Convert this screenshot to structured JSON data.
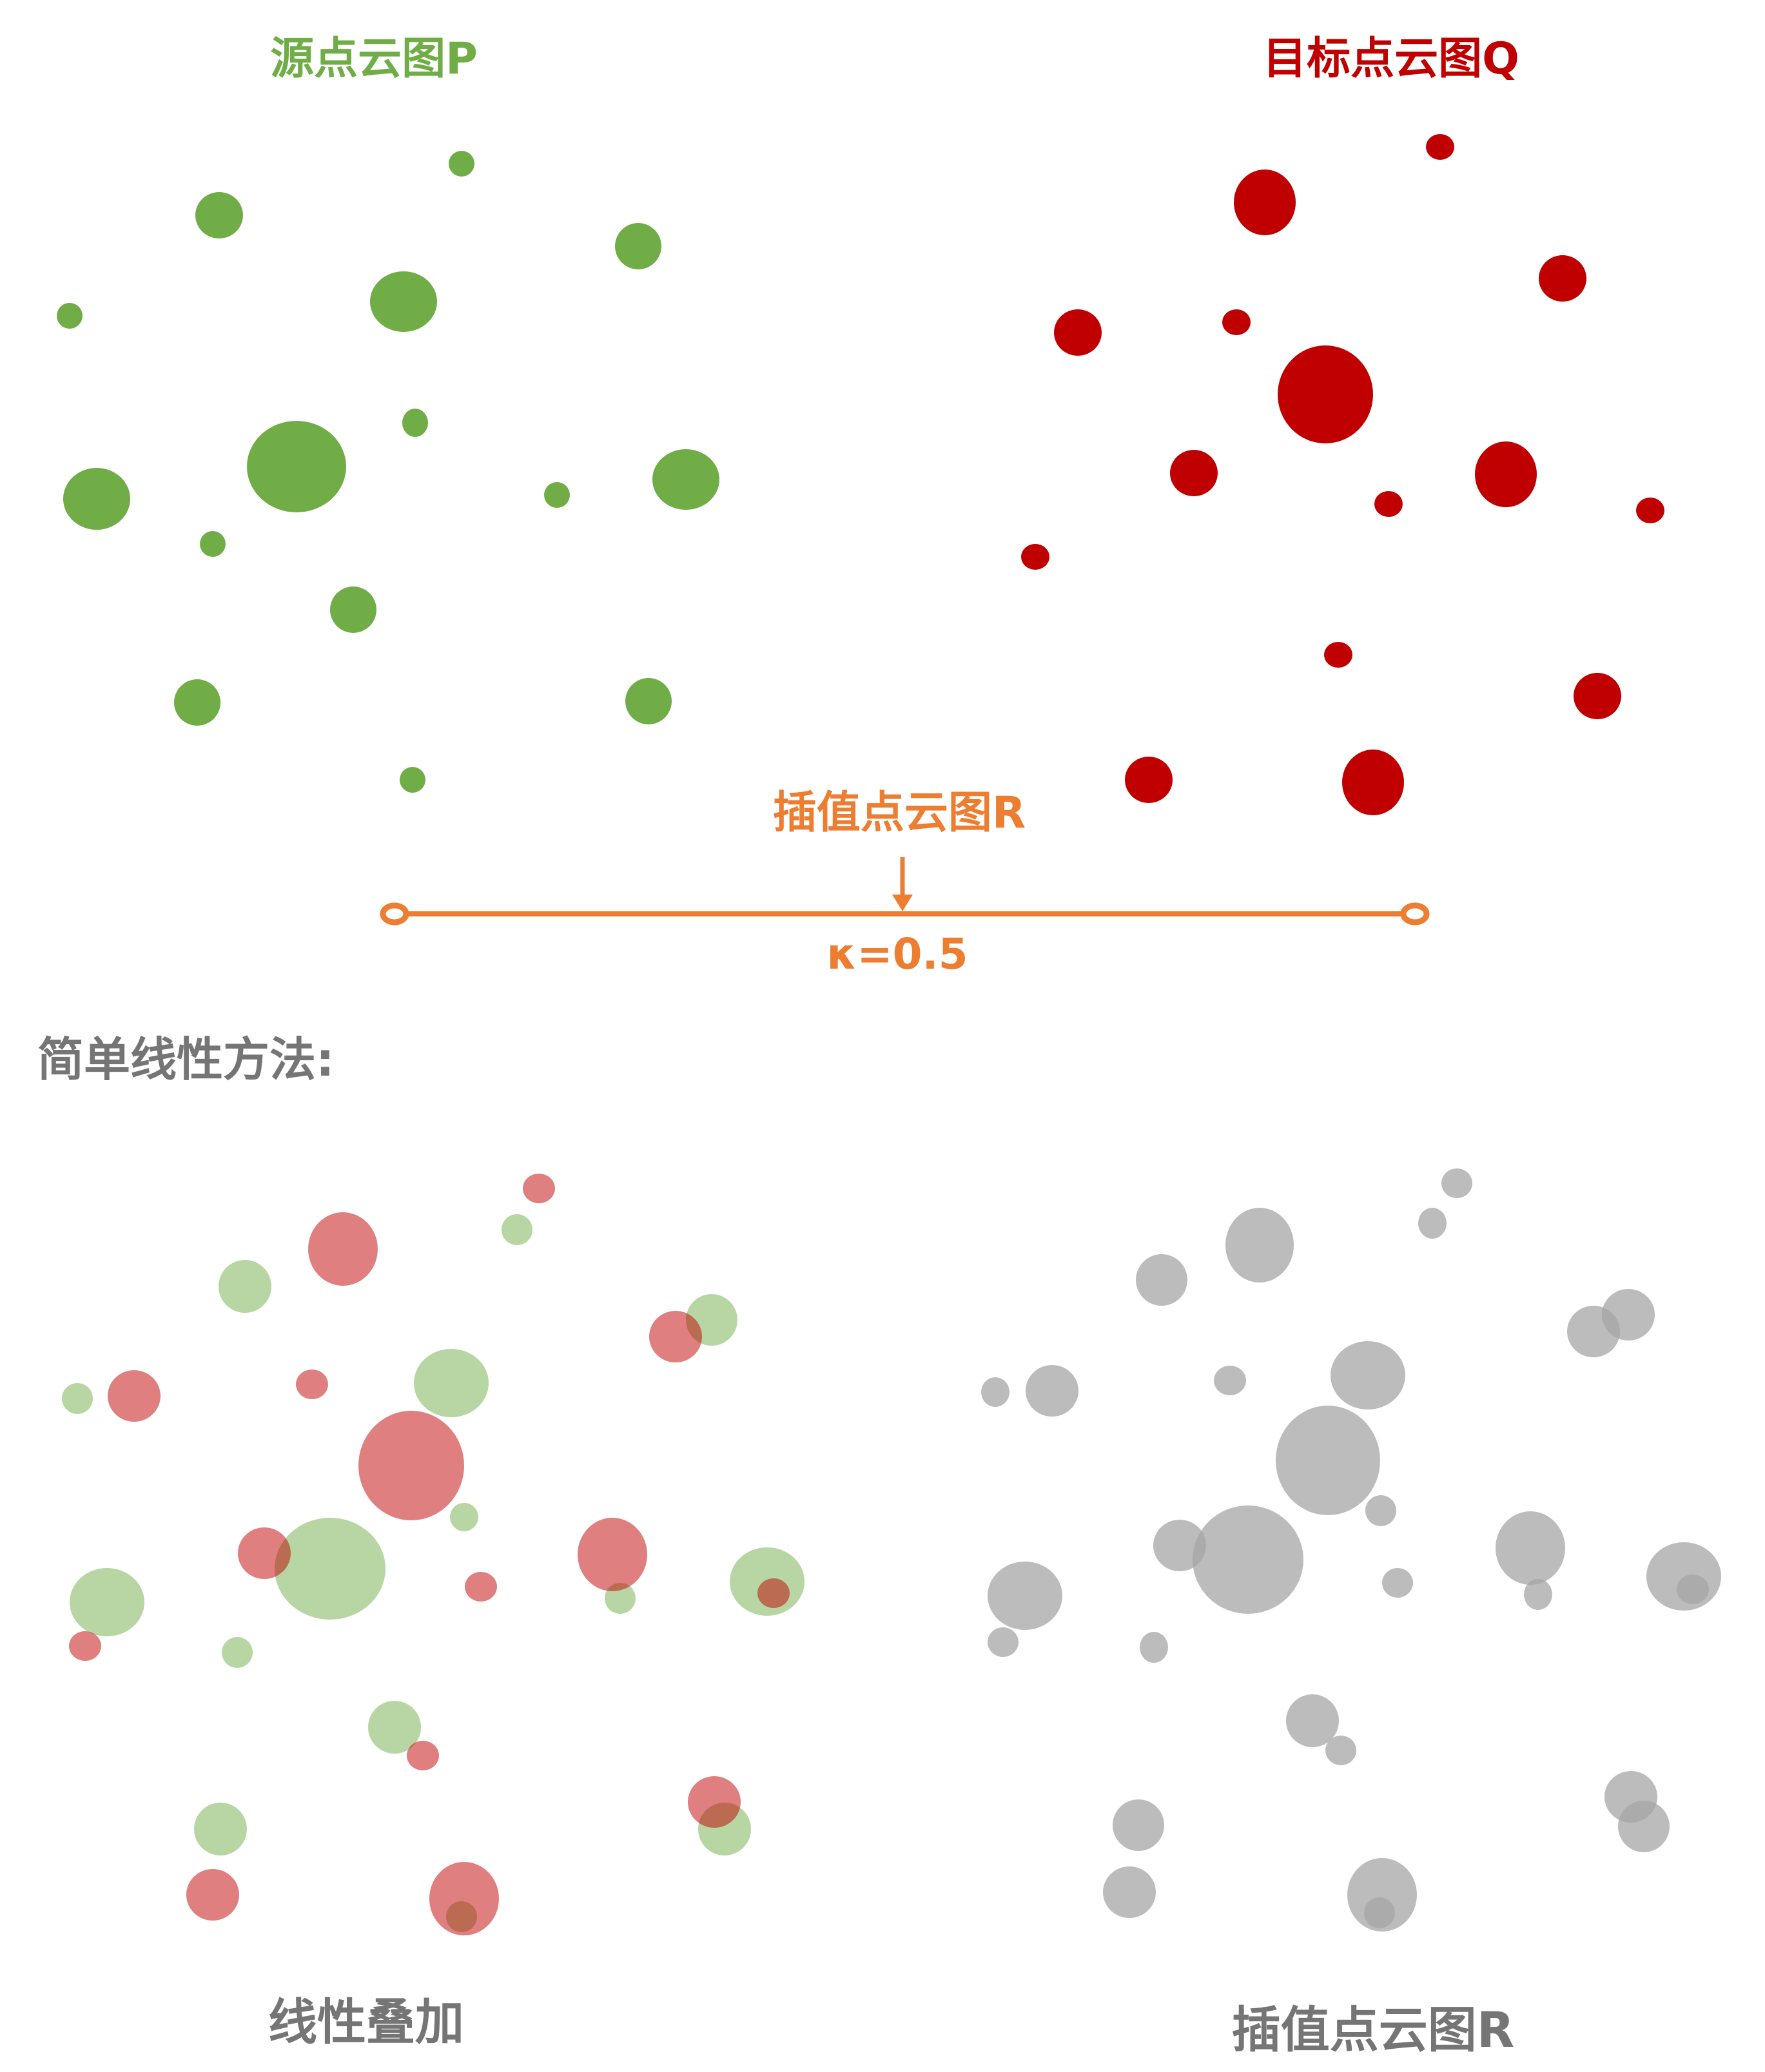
{
  "colors": {
    "source": "#70AD47",
    "target": "#C00000",
    "interp": "#ED7D31",
    "gray_text": "#757575",
    "result_dot": "#A6A6A6"
  },
  "labels": {
    "source": "源点云图P",
    "target": "目标点云图Q",
    "interp": "插值点云图R",
    "kappa": "κ=0.5",
    "method": "简单线性方法:",
    "overlay": "线性叠加",
    "result": "插值点云图R"
  }
}
